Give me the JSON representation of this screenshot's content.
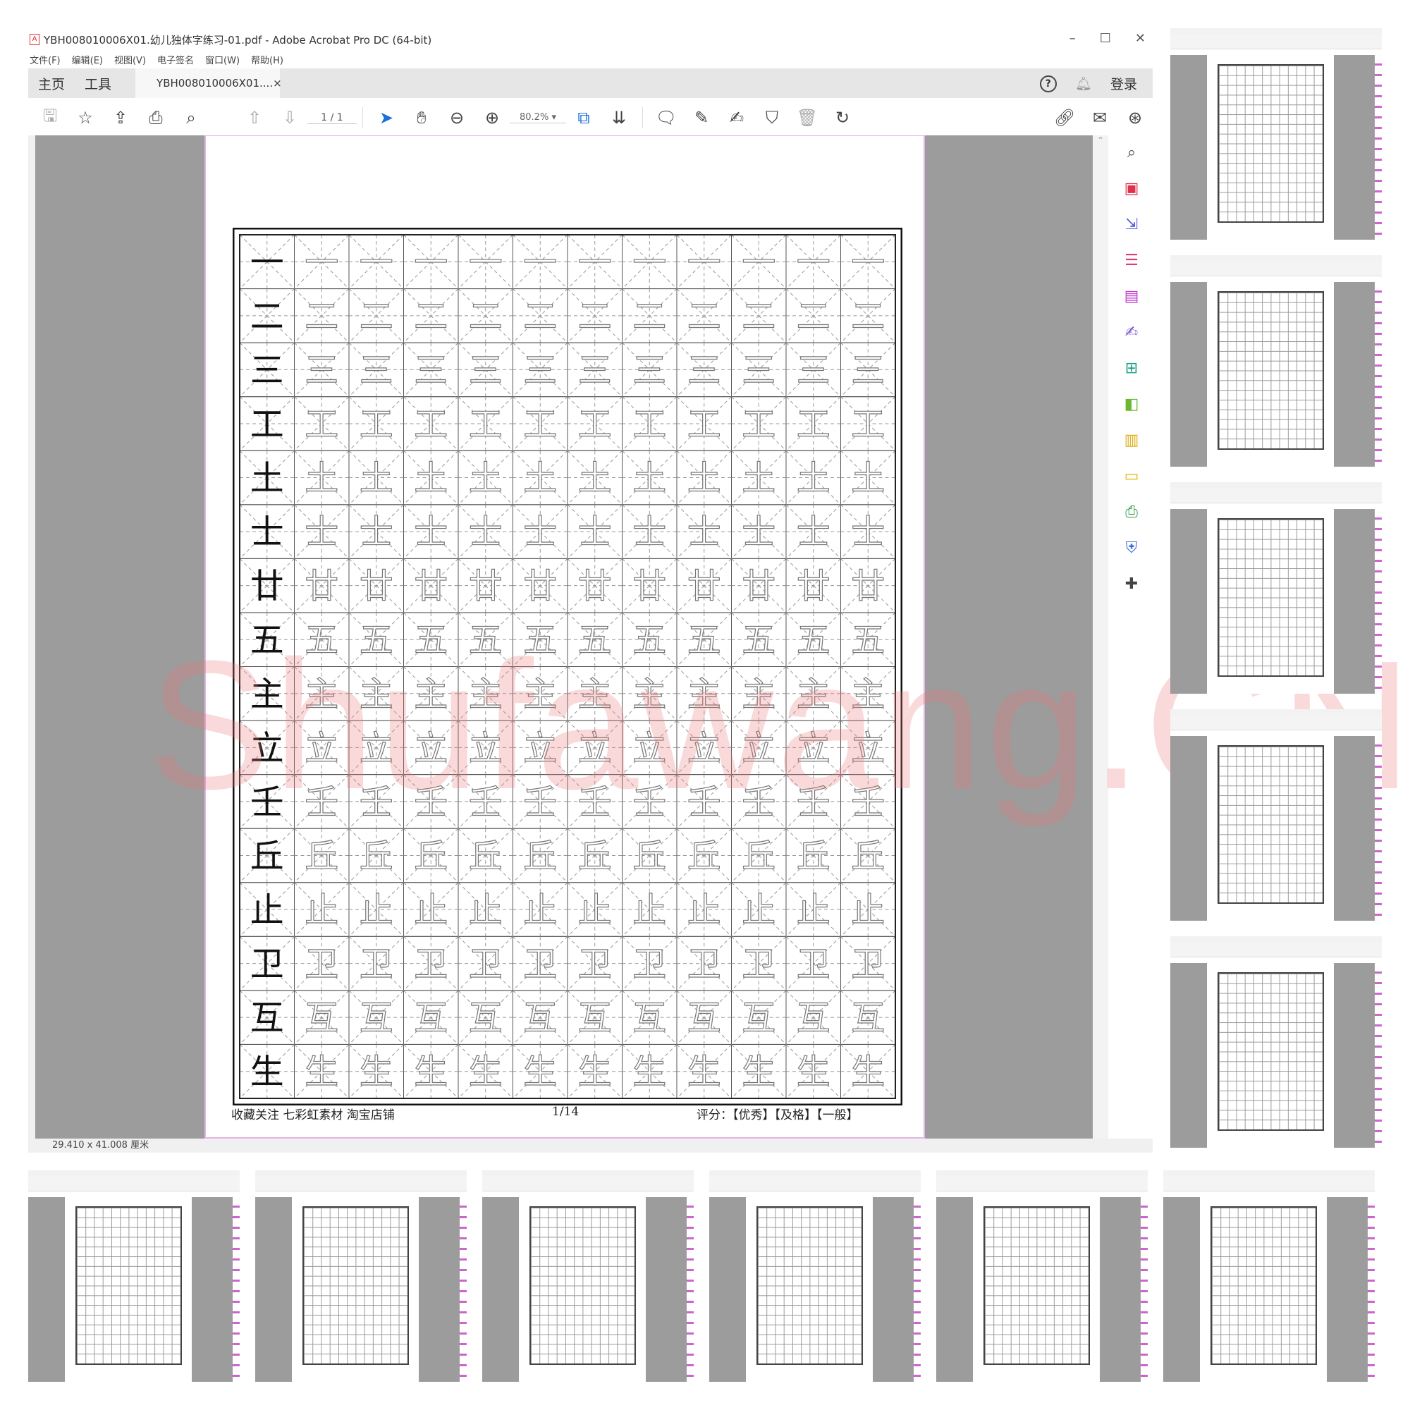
{
  "window": {
    "title": "YBH008010006X01.幼儿独体字练习-01.pdf - Adobe Acrobat Pro DC (64-bit)",
    "min": "–",
    "max": "☐",
    "close": "✕"
  },
  "menu": [
    "文件(F)",
    "编辑(E)",
    "视图(V)",
    "电子签名",
    "窗口(W)",
    "帮助(H)"
  ],
  "tabs": {
    "home": "主页",
    "tools": "工具",
    "doc": "YBH008010006X01....",
    "close": "×",
    "login": "登录"
  },
  "toolbar": {
    "page_current": "1",
    "page_total": "/ 1",
    "zoom": "80.2%"
  },
  "status": {
    "size": "29.410 x 41.008 厘米"
  },
  "document": {
    "characters": [
      "一",
      "二",
      "三",
      "工",
      "土",
      "士",
      "廿",
      "五",
      "主",
      "立",
      "壬",
      "丘",
      "止",
      "卫",
      "互",
      "生"
    ],
    "columns": 12,
    "footer_left": "收藏关注 七彩虹素材 淘宝店铺",
    "footer_page": "1/14",
    "footer_right": "评分：【优秀】【及格】【一般】"
  },
  "watermark": "Shufawang.CN",
  "tool_icons": [
    {
      "name": "search-zoom",
      "color": "#444"
    },
    {
      "name": "create-pdf",
      "color": "#e0304a"
    },
    {
      "name": "export-pdf",
      "color": "#5b5ce0"
    },
    {
      "name": "organize-pages",
      "color": "#e03c6e"
    },
    {
      "name": "edit-pdf",
      "color": "#c23bd1"
    },
    {
      "name": "fill-sign",
      "color": "#7a4fd6"
    },
    {
      "name": "combine",
      "color": "#1f9e8a"
    },
    {
      "name": "compare",
      "color": "#6bb82e"
    },
    {
      "name": "export",
      "color": "#e0b020"
    },
    {
      "name": "comment",
      "color": "#e8b400"
    },
    {
      "name": "print-production",
      "color": "#2e9a48"
    },
    {
      "name": "protect",
      "color": "#3b6fd6"
    },
    {
      "name": "more-tools",
      "color": "#444"
    }
  ]
}
